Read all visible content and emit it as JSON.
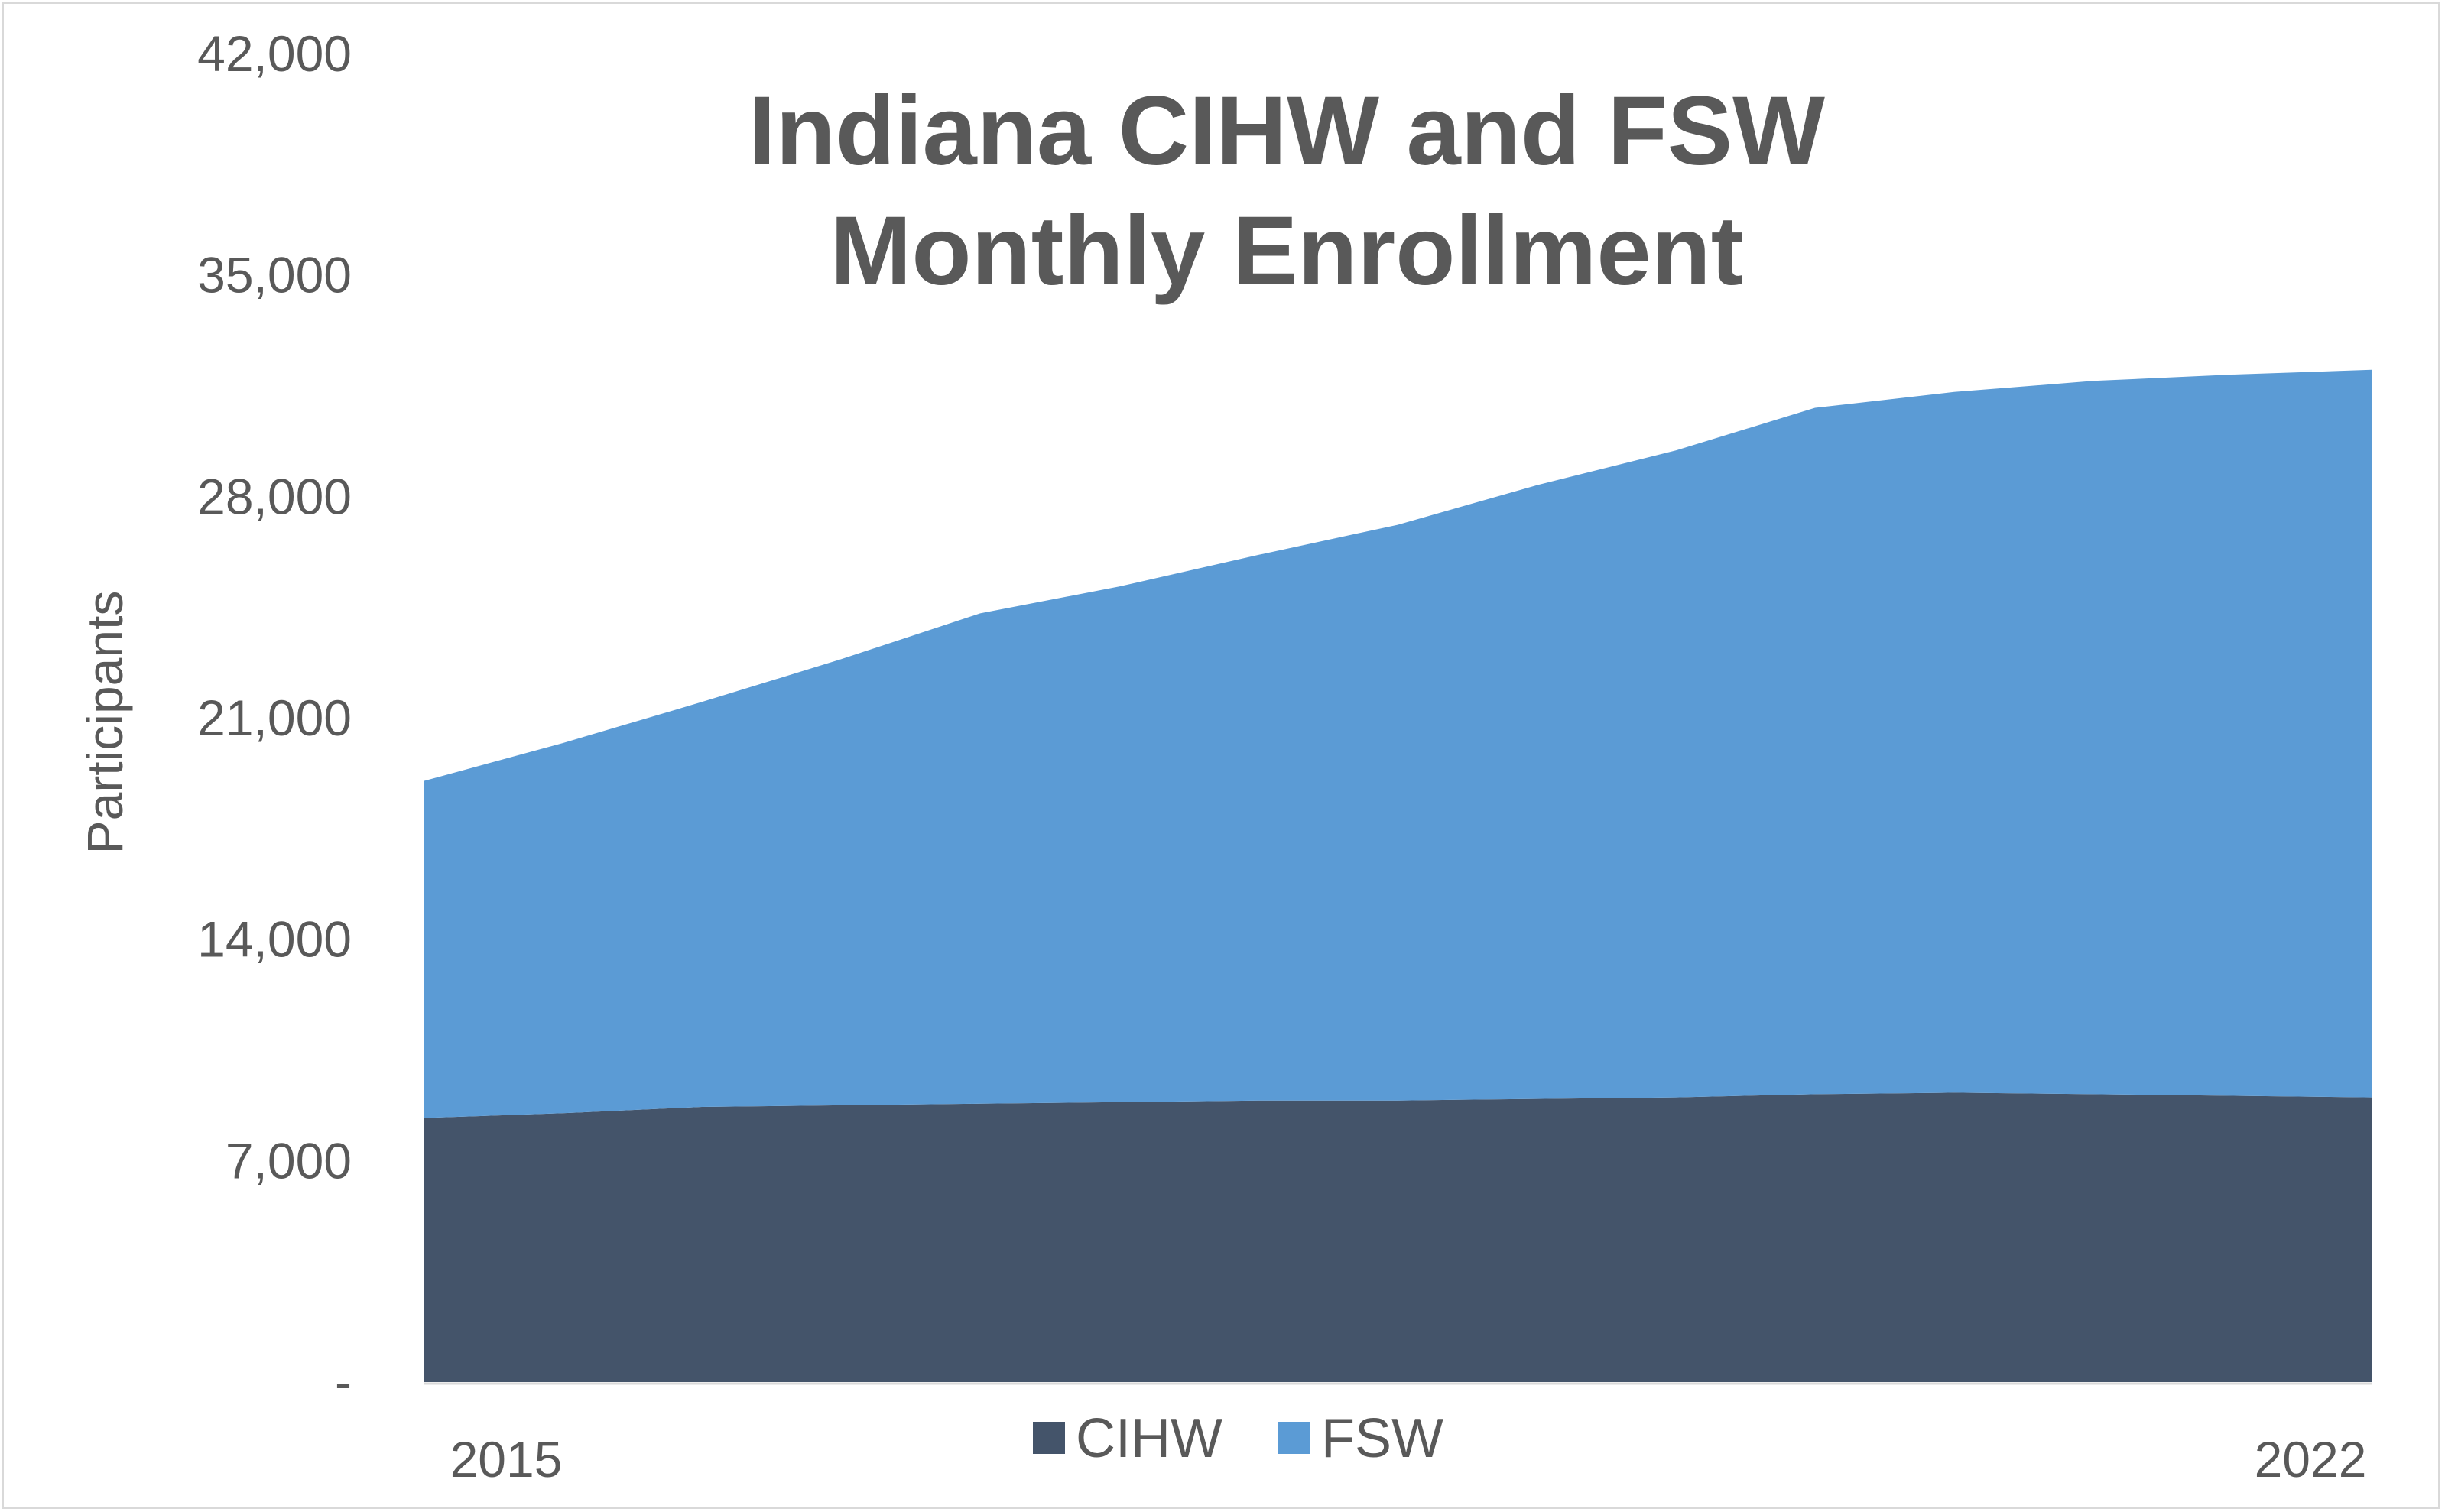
{
  "chart_data": {
    "type": "area",
    "stacked": true,
    "title_lines": [
      "Indiana CIHW and FSW",
      "Monthly Enrollment"
    ],
    "ylabel": "Participants",
    "xlabel": "",
    "x_tick_labels": [
      "2015",
      "2022"
    ],
    "x_start": 2015,
    "x_end": 2022,
    "yticks": [
      0,
      7000,
      14000,
      21000,
      28000,
      35000,
      42000
    ],
    "ytick_labels": [
      "-",
      "7,000",
      "14,000",
      "21,000",
      "28,000",
      "35,000",
      "42,000"
    ],
    "ylim": [
      0,
      42000
    ],
    "legend_position": "bottom",
    "grid": false,
    "x": [
      2015.0,
      2015.5,
      2016.0,
      2016.5,
      2017.0,
      2017.5,
      2018.0,
      2018.5,
      2019.0,
      2019.5,
      2020.0,
      2020.5,
      2021.0,
      2021.5,
      2022.0
    ],
    "series": [
      {
        "name": "CIHW",
        "color": "#44546a",
        "values": [
          8350,
          8500,
          8700,
          8750,
          8800,
          8850,
          8900,
          8900,
          8950,
          9000,
          9100,
          9150,
          9100,
          9050,
          9000
        ]
      },
      {
        "name": "FSW",
        "color": "#5b9bd5",
        "values": [
          10650,
          11700,
          12800,
          14100,
          15500,
          16300,
          17250,
          18200,
          19400,
          20450,
          21700,
          22150,
          22550,
          22800,
          23000
        ]
      }
    ]
  }
}
